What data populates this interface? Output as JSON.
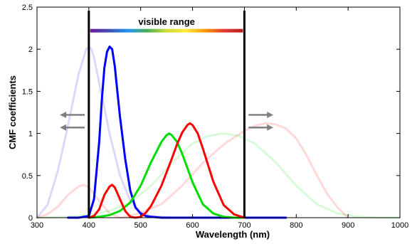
{
  "chart_data": {
    "type": "line",
    "xlabel": "Wavelength (nm)",
    "ylabel": "CMF coefficients",
    "xlim": [
      300,
      1000
    ],
    "ylim": [
      0,
      2.5
    ],
    "xticks": [
      300,
      400,
      500,
      600,
      700,
      800,
      900,
      1000
    ],
    "yticks": [
      0,
      0.5,
      1,
      1.5,
      2,
      2.5
    ],
    "x_tick_labels": [
      "300",
      "400",
      "500",
      "600",
      "700",
      "800",
      "900",
      "1000"
    ],
    "y_tick_labels": [
      "0",
      "0.5",
      "1",
      "1.5",
      "2",
      "2.5"
    ],
    "grid": false,
    "visible_range": {
      "label": "visible range",
      "start": 400,
      "end": 700,
      "bar_y": 2.22,
      "gradient_colors": [
        "#6a1b9a",
        "#3f51b5",
        "#2196f3",
        "#4caf50",
        "#cddc39",
        "#ffeb3b",
        "#ff9800",
        "#e53935",
        "#b71c1c"
      ]
    },
    "shift_arrows": [
      {
        "direction": "left",
        "y": 1.22,
        "x_from": 392,
        "x_to": 344
      },
      {
        "direction": "left",
        "y": 1.07,
        "x_from": 392,
        "x_to": 344
      },
      {
        "direction": "right",
        "y": 1.22,
        "x_from": 708,
        "x_to": 756
      },
      {
        "direction": "right",
        "y": 1.07,
        "x_from": 708,
        "x_to": 756
      }
    ],
    "boundary_lines": [
      400,
      700
    ],
    "series": [
      {
        "color": "#0000ff",
        "opacity": 1.0,
        "width": 3,
        "x": [
          360,
          380,
          400,
          410,
          420,
          425,
          430,
          435,
          440,
          445,
          450,
          455,
          460,
          470,
          480,
          490,
          500,
          510,
          520,
          540,
          560,
          600,
          700,
          780
        ],
        "y": [
          0,
          0,
          0.02,
          0.22,
          0.9,
          1.4,
          1.78,
          1.97,
          2.03,
          2.0,
          1.8,
          1.5,
          1.2,
          0.7,
          0.32,
          0.12,
          0.05,
          0.02,
          0.01,
          0,
          0,
          0,
          0,
          0
        ]
      },
      {
        "color": "#00dd00",
        "opacity": 1.0,
        "width": 3,
        "x": [
          400,
          420,
          440,
          460,
          480,
          500,
          520,
          540,
          550,
          555,
          560,
          570,
          580,
          600,
          620,
          640,
          660,
          680,
          700
        ],
        "y": [
          0,
          0.01,
          0.03,
          0.08,
          0.18,
          0.38,
          0.66,
          0.9,
          0.98,
          1.0,
          0.98,
          0.9,
          0.76,
          0.42,
          0.16,
          0.05,
          0.01,
          0,
          0
        ]
      },
      {
        "color": "#ff0000",
        "opacity": 1.0,
        "width": 3,
        "x": [
          400,
          410,
          420,
          430,
          440,
          445,
          450,
          460,
          470,
          480,
          490,
          500,
          510,
          520,
          540,
          560,
          570,
          580,
          590,
          595,
          600,
          610,
          620,
          640,
          660,
          680,
          700
        ],
        "y": [
          0,
          0.02,
          0.1,
          0.27,
          0.37,
          0.39,
          0.36,
          0.22,
          0.08,
          0.01,
          0,
          0.01,
          0.06,
          0.14,
          0.38,
          0.7,
          0.87,
          1.01,
          1.1,
          1.12,
          1.1,
          1.0,
          0.82,
          0.43,
          0.15,
          0.04,
          0
        ]
      },
      {
        "color": "#0000ff",
        "opacity": 0.15,
        "width": 3,
        "x": [
          300,
          320,
          340,
          360,
          380,
          395,
          400,
          405,
          410,
          420,
          440,
          460,
          480,
          500,
          520,
          540,
          560,
          600,
          700
        ],
        "y": [
          0,
          0.15,
          0.55,
          1.1,
          1.7,
          2.0,
          2.03,
          2.0,
          1.9,
          1.6,
          1.0,
          0.5,
          0.2,
          0.06,
          0.02,
          0.01,
          0,
          0,
          0
        ]
      },
      {
        "color": "#00dd00",
        "opacity": 0.15,
        "width": 3,
        "x": [
          300,
          360,
          400,
          440,
          480,
          520,
          560,
          600,
          630,
          660,
          690,
          720,
          760,
          800,
          840,
          880,
          920,
          960,
          1000
        ],
        "y": [
          0,
          0.01,
          0.03,
          0.08,
          0.18,
          0.38,
          0.65,
          0.88,
          0.97,
          1.0,
          0.97,
          0.88,
          0.66,
          0.38,
          0.16,
          0.05,
          0.01,
          0,
          0
        ]
      },
      {
        "color": "#ff0000",
        "opacity": 0.15,
        "width": 3,
        "x": [
          300,
          320,
          340,
          360,
          380,
          390,
          400,
          420,
          440,
          460,
          480,
          500,
          540,
          580,
          620,
          660,
          700,
          720,
          740,
          760,
          780,
          800,
          820,
          840,
          860,
          880,
          900
        ],
        "y": [
          0,
          0.04,
          0.13,
          0.27,
          0.37,
          0.39,
          0.36,
          0.2,
          0.05,
          0,
          0.02,
          0.06,
          0.16,
          0.38,
          0.65,
          0.87,
          1.03,
          1.09,
          1.12,
          1.11,
          1.06,
          0.94,
          0.74,
          0.5,
          0.28,
          0.12,
          0
        ]
      }
    ]
  }
}
